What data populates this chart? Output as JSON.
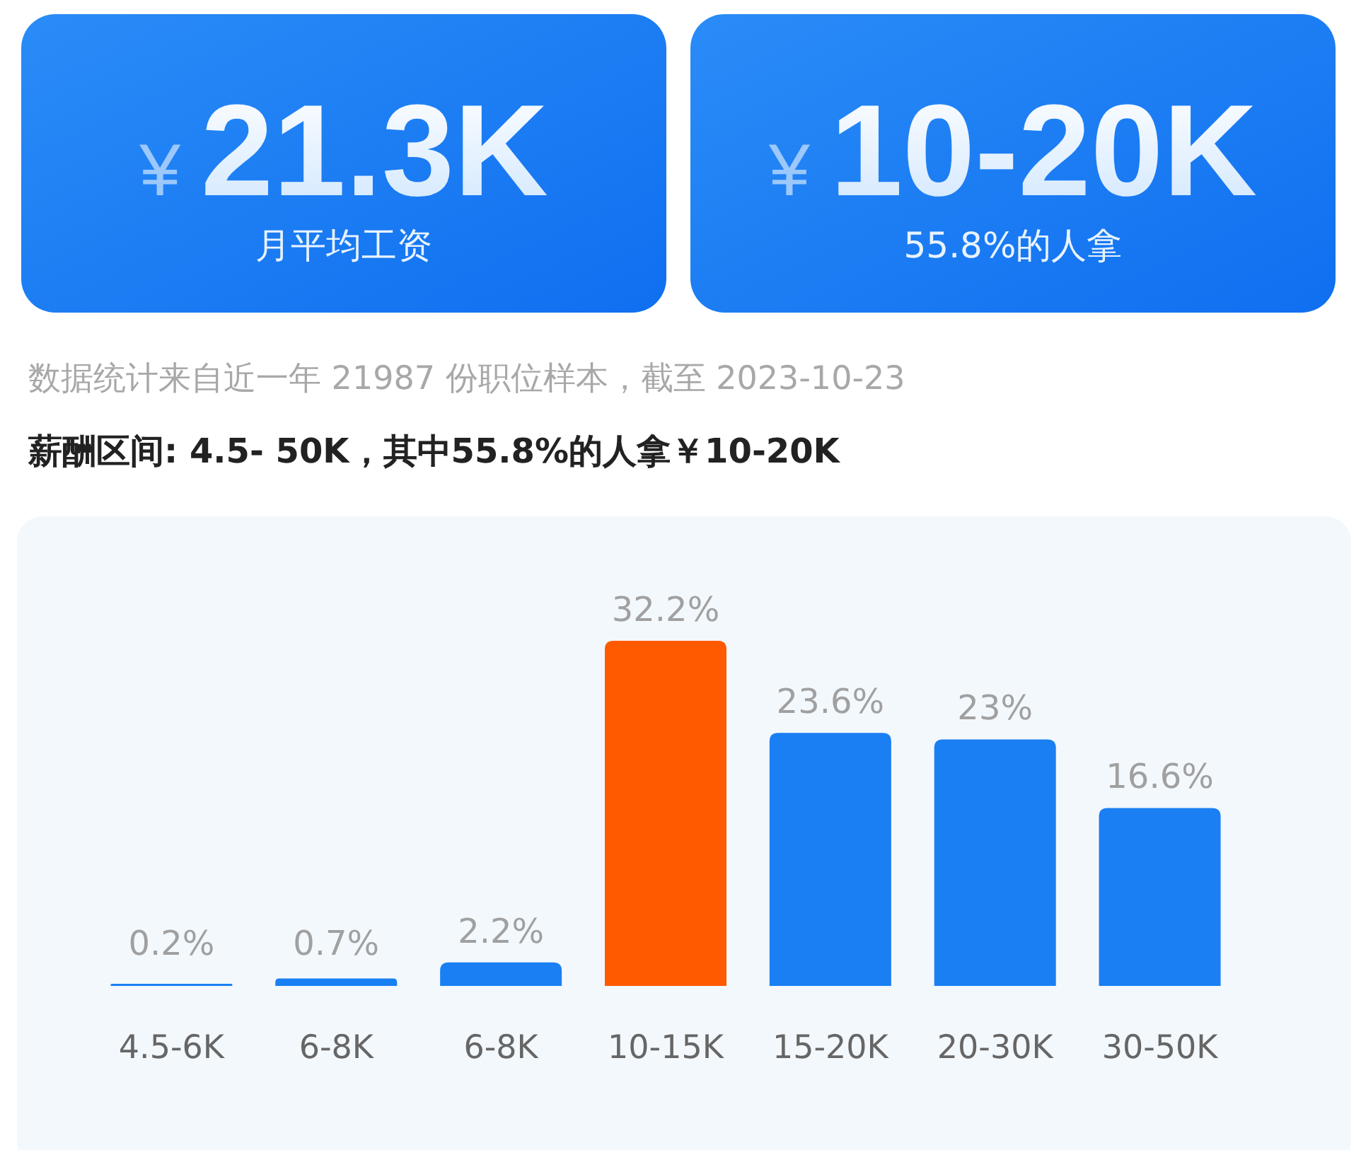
{
  "chart_data": [
    {
      "type": "other",
      "title": "¥21.3K",
      "subtitle": "月平均工资"
    },
    {
      "type": "other",
      "title": "¥10-20K",
      "subtitle": "55.8%的人拿"
    },
    {
      "type": "bar",
      "subtitle": "数据统计来自近一年 21987 份职位样本，截至 2023-10-23",
      "title": "薪酬区间: 4.5- 50K，其中55.8%的人拿￥10-20K",
      "categories": [
        "4.5-6K",
        "6-8K",
        "6-8K",
        "10-15K",
        "15-20K",
        "20-30K",
        "30-50K"
      ],
      "values": [
        0.2,
        0.7,
        2.2,
        32.2,
        23.6,
        23,
        16.6
      ],
      "value_labels": [
        "0.2%",
        "0.7%",
        "2.2%",
        "32.2%",
        "23.6%",
        "23%",
        "16.6%"
      ],
      "colors": [
        "#1a7ff2",
        "#1a7ff2",
        "#1a7ff2",
        "#ff5a00",
        "#1a7ff2",
        "#1a7ff2",
        "#1a7ff2"
      ]
    }
  ]
}
